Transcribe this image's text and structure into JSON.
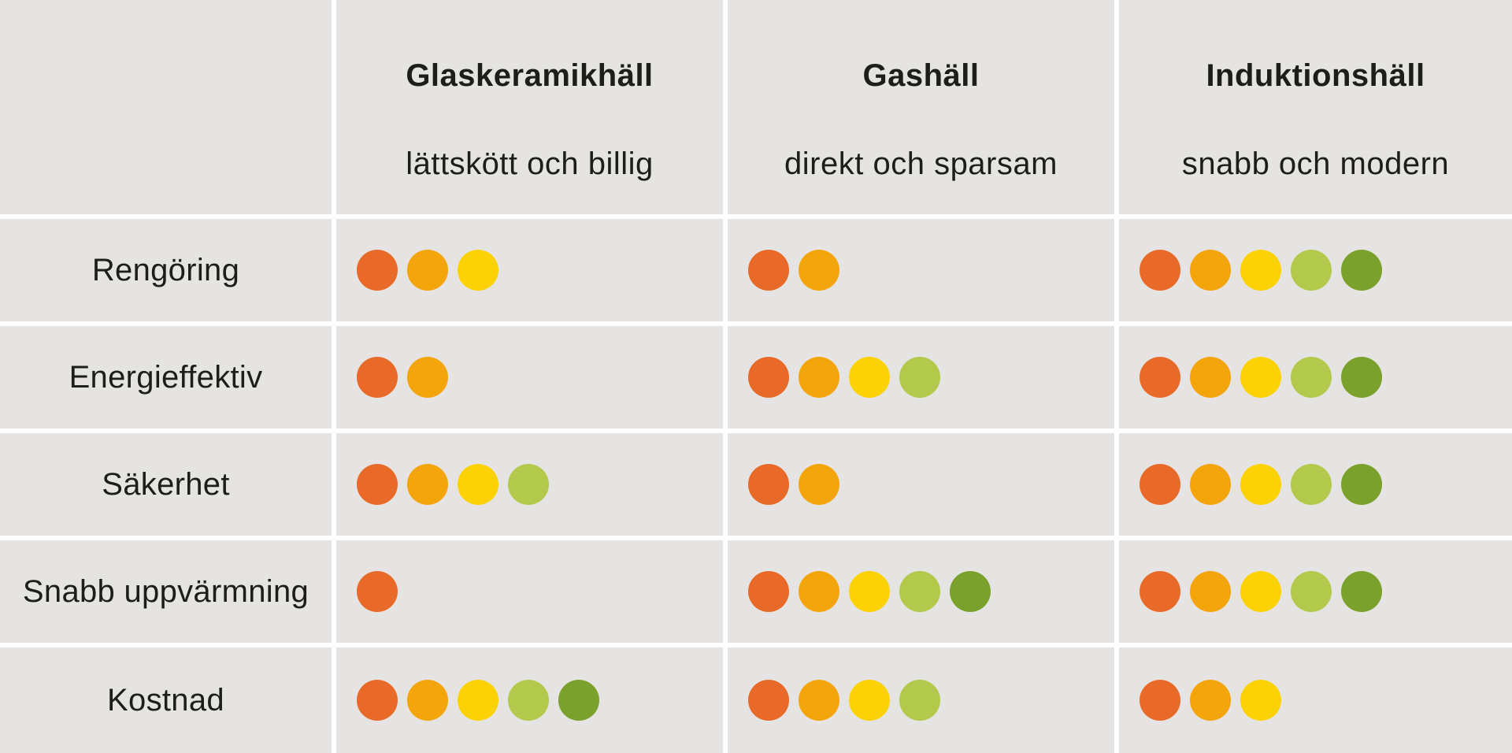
{
  "table": {
    "background_color": "#e5e4e2",
    "grid_line_color": "#ffffff",
    "text_color": "#1d1d1b",
    "rating_scale_max": 5,
    "dot_colors": [
      "#e96a28",
      "#f4a50b",
      "#fdd205",
      "#b2c94c",
      "#79a12b"
    ],
    "columns": [
      {
        "title": "Glaskeramikhäll",
        "subtitle": "lättskött och billig"
      },
      {
        "title": "Gashäll",
        "subtitle": "direkt och sparsam"
      },
      {
        "title": "Induktionshäll",
        "subtitle": "snabb och modern"
      }
    ],
    "rows": [
      {
        "label": "Rengöring",
        "ratings": [
          3,
          2,
          5
        ]
      },
      {
        "label": "Energieffektiv",
        "ratings": [
          2,
          4,
          5
        ]
      },
      {
        "label": "Säkerhet",
        "ratings": [
          4,
          2,
          5
        ]
      },
      {
        "label": "Snabb uppvärmning",
        "ratings": [
          1,
          5,
          5
        ]
      },
      {
        "label": "Kostnad",
        "ratings": [
          5,
          4,
          3
        ]
      }
    ]
  },
  "chart_data": {
    "type": "table",
    "title": "",
    "categories": [
      "Rengöring",
      "Energieffektiv",
      "Säkerhet",
      "Snabb uppvärmning",
      "Kostnad"
    ],
    "series": [
      {
        "name": "Glaskeramikhäll",
        "subtitle": "lättskött och billig",
        "values": [
          3,
          2,
          4,
          1,
          5
        ]
      },
      {
        "name": "Gashäll",
        "subtitle": "direkt och sparsam",
        "values": [
          2,
          4,
          2,
          5,
          4
        ]
      },
      {
        "name": "Induktionshäll",
        "subtitle": "snabb och modern",
        "values": [
          5,
          5,
          5,
          5,
          3
        ]
      }
    ],
    "value_range": [
      0,
      5
    ],
    "encoding": "rating shown as count of dots; dot colors progress orange → amber → yellow → light green → dark green",
    "dot_color_scale": [
      "#e96a28",
      "#f4a50b",
      "#fdd205",
      "#b2c94c",
      "#79a12b"
    ],
    "legend_position": "none",
    "grid": "white separator lines between cells"
  }
}
